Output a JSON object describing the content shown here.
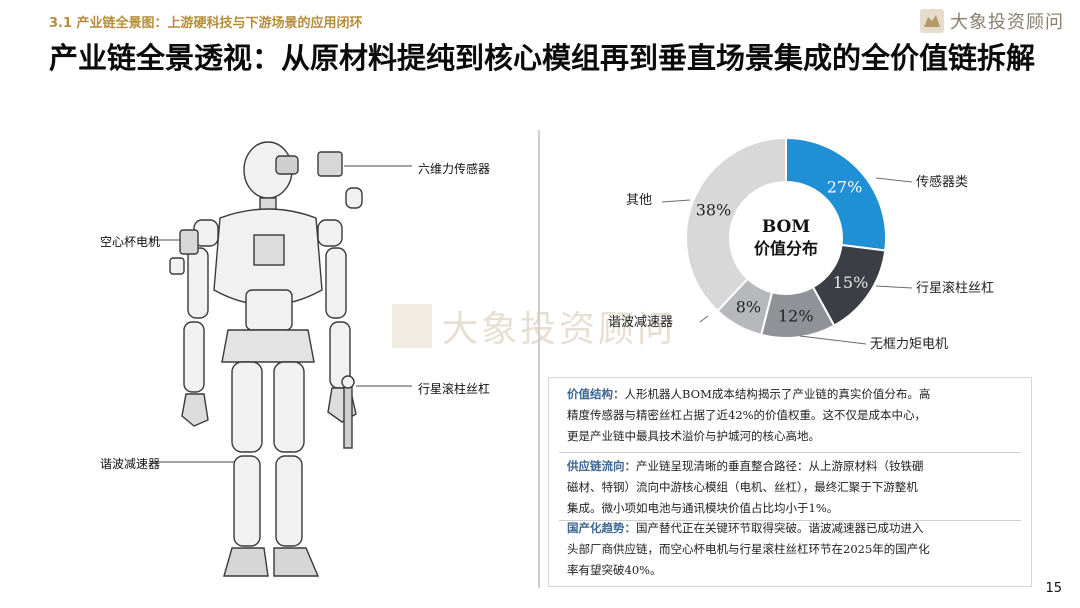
{
  "header": {
    "section_label": "3.1 产业链全景图：上游硬科技与下游场景的应用闭环",
    "title": "产业链全景透视：从原材料提纯到核心模组再到垂直场景集成的全价值链拆解",
    "brand": "大象投资顾问"
  },
  "robot_callouts": {
    "six_axis_sensor": "六维力传感器",
    "coreless_motor": "空心杯电机",
    "planetary_screw": "行星滚柱丝杠",
    "harmonic_reducer": "谐波减速器"
  },
  "watermark": "大象投资顾问",
  "chart_data": {
    "type": "pie",
    "center_label_line1": "BOM",
    "center_label_line2": "价值分布",
    "slices": [
      {
        "label": "传感器类",
        "value": 27,
        "text": "27%",
        "color": "#1f8fd6"
      },
      {
        "label": "行星滚柱丝杠",
        "value": 15,
        "text": "15%",
        "color": "#3b3f45"
      },
      {
        "label": "无框力矩电机",
        "value": 12,
        "text": "12%",
        "color": "#8f9398"
      },
      {
        "label": "谐波减速器",
        "value": 8,
        "text": "8%",
        "color": "#b6b8bb"
      },
      {
        "label": "其他",
        "value": 38,
        "text": "38%",
        "color": "#d8d8d8"
      }
    ]
  },
  "panel": {
    "value_structure": {
      "head": "价值结构：",
      "line1": "人形机器人BOM成本结构揭示了产业链的真实价值分布。高",
      "line2": "精度传感器与精密丝杠占据了近42%的价值权重。这不仅是成本中心，",
      "line3": "更是产业链中最具技术溢价与护城河的核心高地。"
    },
    "supply_chain": {
      "head": "供应链流向：",
      "line1": "产业链呈现清晰的垂直整合路径：从上游原材料（钕铁硼",
      "line2": "磁材、特钢）流向中游核心模组（电机、丝杠），最终汇聚于下游整机",
      "line3": "集成。微小项如电池与通讯模块价值占比均小于1%。"
    },
    "localization": {
      "head": "国产化趋势：",
      "line1": "国产替代正在关键环节取得突破。谐波减速器已成功进入",
      "line2": "头部厂商供应链，而空心杯电机与行星滚柱丝杠环节在2025年的国产化",
      "line3": "率有望突破40%。"
    }
  },
  "page_number": "15"
}
